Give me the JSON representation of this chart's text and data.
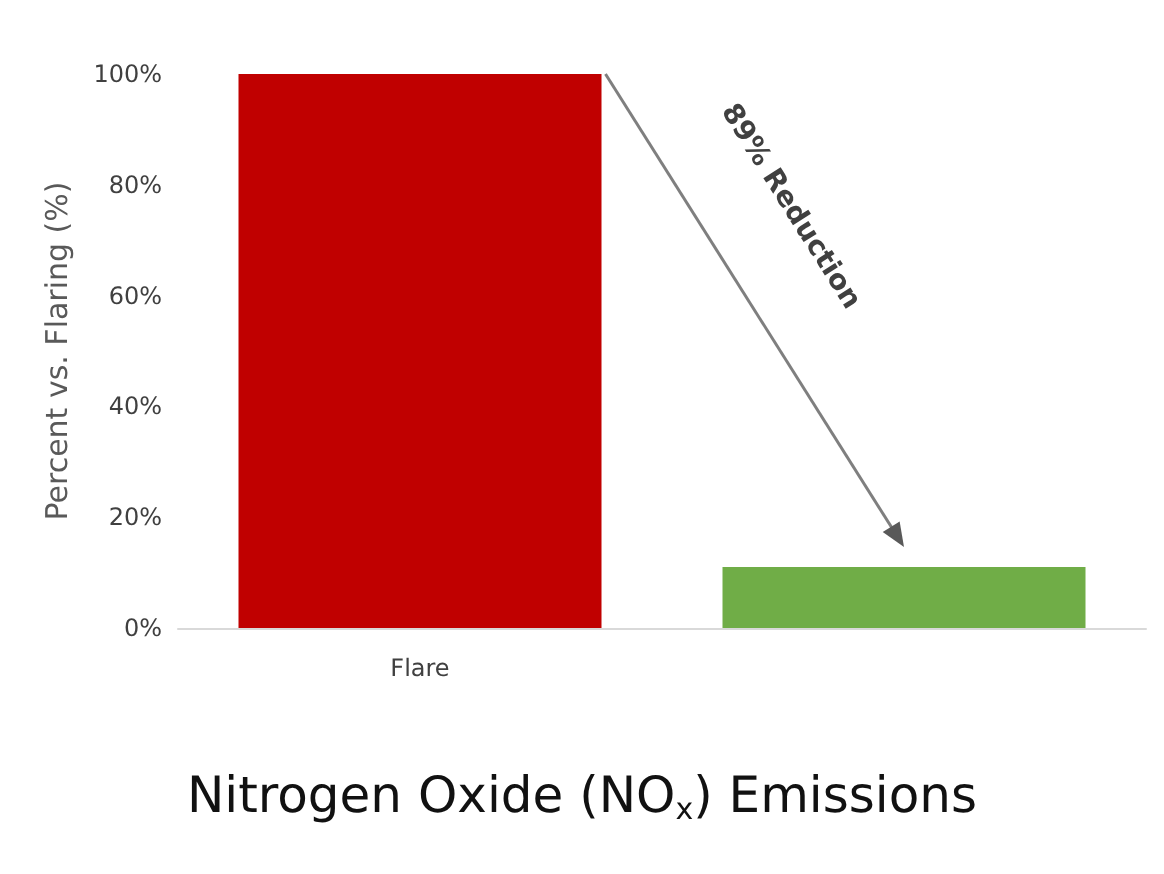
{
  "chart_data": {
    "type": "bar",
    "title": "Nitrogen Oxide (NO$_{x}$) Emissions",
    "ylabel": "Percent vs. Flaring (%)",
    "categories": [
      "Flare",
      null
    ],
    "values": [
      100,
      11
    ],
    "colors": [
      "#c00000",
      "#70ad47"
    ],
    "ylim": [
      0,
      100
    ],
    "yticks": [
      {
        "value": 0,
        "label": "0%"
      },
      {
        "value": 20,
        "label": "20%"
      },
      {
        "value": 40,
        "label": "40%"
      },
      {
        "value": 60,
        "label": "60%"
      },
      {
        "value": 80,
        "label": "80%"
      },
      {
        "value": 100,
        "label": "100%"
      }
    ],
    "annotations": [
      "89% Reduction"
    ],
    "grid": false
  }
}
